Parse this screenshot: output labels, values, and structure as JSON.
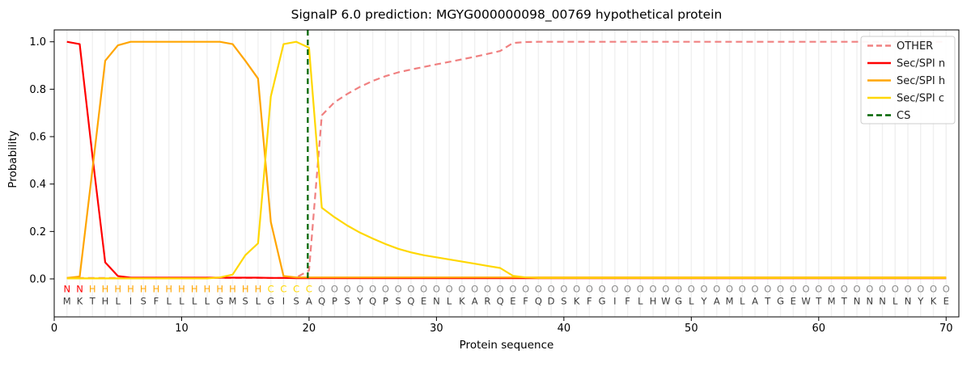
{
  "title": "SignalP 6.0 prediction: MGYG000000098_00769 hypothetical protein",
  "axes": {
    "xlabel": "Protein sequence",
    "ylabel": "Probability",
    "xticks": [
      0,
      10,
      20,
      30,
      40,
      50,
      60,
      70
    ],
    "yticks": [
      "0.0",
      "0.2",
      "0.4",
      "0.6",
      "0.8",
      "1.0"
    ],
    "xlim": [
      0,
      71
    ],
    "ylim": [
      -0.16,
      1.05
    ],
    "grid": "vertical-per-residue"
  },
  "chart_data": {
    "type": "line",
    "title": "SignalP 6.0 prediction: MGYG000000098_00769 hypothetical protein",
    "xlabel": "Protein sequence",
    "ylabel": "Probability",
    "x": [
      1,
      2,
      3,
      4,
      5,
      6,
      7,
      8,
      9,
      10,
      11,
      12,
      13,
      14,
      15,
      16,
      17,
      18,
      19,
      20,
      21,
      22,
      23,
      24,
      25,
      26,
      27,
      28,
      29,
      30,
      31,
      32,
      33,
      34,
      35,
      36,
      37,
      38,
      39,
      40,
      41,
      42,
      43,
      44,
      45,
      46,
      47,
      48,
      49,
      50,
      51,
      52,
      53,
      54,
      55,
      56,
      57,
      58,
      59,
      60,
      61,
      62,
      63,
      64,
      65,
      66,
      67,
      68,
      69,
      70
    ],
    "series": [
      {
        "name": "OTHER",
        "color": "#f08080",
        "dashed": true,
        "values": [
          0.004,
          0.004,
          0.004,
          0.004,
          0.004,
          0.004,
          0.004,
          0.004,
          0.004,
          0.004,
          0.004,
          0.004,
          0.004,
          0.004,
          0.004,
          0.004,
          0.004,
          0.004,
          0.006,
          0.035,
          0.69,
          0.745,
          0.78,
          0.81,
          0.835,
          0.855,
          0.871,
          0.883,
          0.894,
          0.905,
          0.915,
          0.926,
          0.937,
          0.949,
          0.961,
          0.995,
          0.999,
          1.0,
          1.0,
          1.0,
          1.0,
          1.0,
          1.0,
          1.0,
          1.0,
          1.0,
          1.0,
          1.0,
          1.0,
          1.0,
          1.0,
          1.0,
          1.0,
          1.0,
          1.0,
          1.0,
          1.0,
          1.0,
          1.0,
          1.0,
          1.0,
          1.0,
          1.0,
          1.0,
          1.0,
          1.0,
          1.0,
          1.0,
          1.0,
          1.0
        ]
      },
      {
        "name": "Sec/SPI n",
        "color": "#ff0000",
        "dashed": false,
        "values": [
          1.0,
          0.99,
          0.52,
          0.07,
          0.012,
          0.005,
          0.005,
          0.005,
          0.005,
          0.005,
          0.005,
          0.005,
          0.005,
          0.005,
          0.005,
          0.005,
          0.004,
          0.004,
          0.003,
          0.003,
          0.003,
          0.003,
          0.003,
          0.003,
          0.003,
          0.003,
          0.003,
          0.003,
          0.003,
          0.003,
          0.003,
          0.003,
          0.003,
          0.003,
          0.003,
          0.003,
          0.003,
          0.003,
          0.003,
          0.003,
          0.003,
          0.003,
          0.003,
          0.003,
          0.003,
          0.003,
          0.003,
          0.003,
          0.003,
          0.003,
          0.003,
          0.003,
          0.003,
          0.003,
          0.003,
          0.003,
          0.003,
          0.003,
          0.003,
          0.003,
          0.003,
          0.003,
          0.003,
          0.003,
          0.003,
          0.003,
          0.003,
          0.003,
          0.003,
          0.003
        ]
      },
      {
        "name": "Sec/SPI h",
        "color": "#ffa500",
        "dashed": false,
        "values": [
          0.004,
          0.01,
          0.46,
          0.92,
          0.985,
          1.0,
          1.0,
          1.0,
          1.0,
          1.0,
          1.0,
          1.0,
          1.0,
          0.99,
          0.92,
          0.845,
          0.24,
          0.012,
          0.006,
          0.006,
          0.006,
          0.006,
          0.006,
          0.006,
          0.006,
          0.006,
          0.006,
          0.006,
          0.006,
          0.006,
          0.006,
          0.006,
          0.006,
          0.006,
          0.006,
          0.006,
          0.006,
          0.006,
          0.006,
          0.006,
          0.006,
          0.006,
          0.006,
          0.006,
          0.006,
          0.006,
          0.006,
          0.006,
          0.006,
          0.006,
          0.006,
          0.006,
          0.006,
          0.006,
          0.006,
          0.006,
          0.006,
          0.006,
          0.006,
          0.006,
          0.006,
          0.006,
          0.006,
          0.006,
          0.006,
          0.006,
          0.006,
          0.006,
          0.006,
          0.006
        ]
      },
      {
        "name": "Sec/SPI c",
        "color": "#ffd700",
        "dashed": false,
        "values": [
          0.002,
          0.002,
          0.002,
          0.002,
          0.002,
          0.002,
          0.002,
          0.002,
          0.002,
          0.002,
          0.002,
          0.002,
          0.006,
          0.018,
          0.1,
          0.15,
          0.77,
          0.99,
          1.0,
          0.975,
          0.3,
          0.26,
          0.225,
          0.195,
          0.17,
          0.147,
          0.127,
          0.112,
          0.1,
          0.091,
          0.082,
          0.073,
          0.064,
          0.055,
          0.046,
          0.013,
          0.006,
          0.004,
          0.004,
          0.004,
          0.004,
          0.004,
          0.004,
          0.004,
          0.004,
          0.004,
          0.004,
          0.004,
          0.004,
          0.004,
          0.004,
          0.004,
          0.004,
          0.004,
          0.004,
          0.004,
          0.004,
          0.004,
          0.004,
          0.004,
          0.004,
          0.004,
          0.004,
          0.004,
          0.004,
          0.004,
          0.004,
          0.004,
          0.004,
          0.004
        ]
      }
    ],
    "cs_marker": {
      "name": "CS",
      "color": "#006400",
      "dashed": true,
      "x": 19.9
    },
    "legend": {
      "position": "upper right",
      "entries": [
        "OTHER",
        "Sec/SPI n",
        "Sec/SPI h",
        "Sec/SPI c",
        "CS"
      ]
    },
    "sequence": "MKTHLISFLLLLGMSLGISAQPSYQPSQENLKARQEFQDSKFGIFLHWGLYAMLATGEWTMTNNNLNYKE",
    "states": "NNHHHHHHHHHHHHHHCCCCOOOOOOOOOOOOOOOOOOOOOOOOOOOOOOOOOOOOOOOOOOOOOOOOOO",
    "state_colors": {
      "N": "#ff0000",
      "H": "#ffa500",
      "C": "#ffd700",
      "O": "#8b8b8b"
    },
    "sequence_color": "#3c3c3c",
    "grid_color": "#f0f0f0",
    "spine_color": "#000000"
  }
}
